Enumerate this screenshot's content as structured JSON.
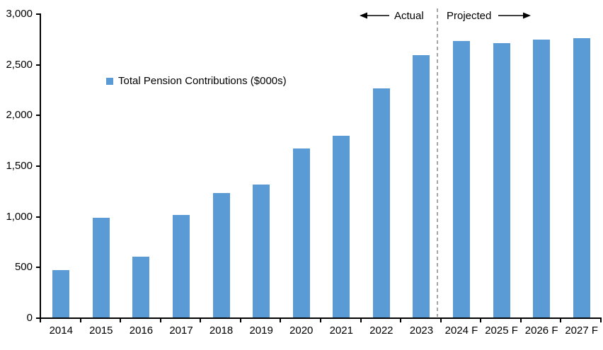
{
  "chart_data": {
    "type": "bar",
    "title": "",
    "legend": "Total Pension Contributions ($000s)",
    "categories": [
      "2014",
      "2015",
      "2016",
      "2017",
      "2018",
      "2019",
      "2020",
      "2021",
      "2022",
      "2023",
      "2024 F",
      "2025 F",
      "2026 F",
      "2027 F"
    ],
    "values": [
      465,
      985,
      600,
      1010,
      1225,
      1310,
      1665,
      1795,
      2260,
      2585,
      2725,
      2710,
      2740,
      2755
    ],
    "xlabel": "",
    "ylabel": "",
    "ylim": [
      0,
      3000
    ],
    "ytick_interval": 500,
    "ytick_labels": [
      "0",
      "500",
      "1,000",
      "1,500",
      "2,000",
      "2,500",
      "3,000"
    ],
    "grid": "off",
    "legend_position": "inside-upper-left",
    "actual_label": "Actual",
    "projected_label": "Projected",
    "separator_after_category": "2023",
    "bar_color": "#5B9BD5",
    "separator_color": "#A6A6A6",
    "axis_color": "#000000",
    "background_color": "#FFFFFF"
  }
}
